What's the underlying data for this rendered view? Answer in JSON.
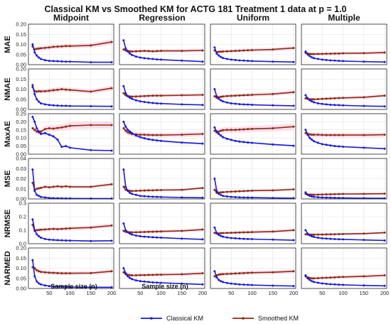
{
  "chart_data": {
    "type": "line",
    "title": "Classical KM vs Smoothed KM for ACTG 181 Treatment 1 data at p = 1.0",
    "columns": [
      "Midpoint",
      "Regression",
      "Uniform",
      "Multiple"
    ],
    "rows": [
      "MAE",
      "NMAE",
      "MaxAE",
      "MSE",
      "NRMSE",
      "NARMED"
    ],
    "xlabel": "Sample size (n)",
    "x": [
      10,
      15,
      20,
      25,
      30,
      40,
      50,
      60,
      70,
      80,
      90,
      100,
      150,
      200
    ],
    "xticks": [
      50,
      100,
      150,
      200
    ],
    "xlim": [
      0,
      205
    ],
    "legend_position": "bottom",
    "grid": true,
    "series_names": [
      "Classical KM",
      "Smoothed KM"
    ],
    "colors": {
      "Classical KM": "#1a1ad6",
      "Smoothed KM": "#8b2a14",
      "band_classical": "#c8d0ff",
      "band_smoothed": "#ffc2dc"
    },
    "panels": [
      {
        "row": "MAE",
        "col": "Midpoint",
        "ylim": [
          0,
          0.2
        ],
        "yticks": [
          "0.00",
          "0.05",
          "0.10",
          "0.15",
          "0.20"
        ],
        "classical": [
          0.1,
          0.06,
          0.045,
          0.035,
          0.028,
          0.022,
          0.019,
          0.018,
          0.017,
          0.016,
          0.015,
          0.015,
          0.012,
          0.012
        ],
        "smoothed": [
          0.09,
          0.075,
          0.078,
          0.08,
          0.081,
          0.083,
          0.085,
          0.088,
          0.089,
          0.09,
          0.092,
          0.092,
          0.095,
          0.112
        ]
      },
      {
        "row": "MAE",
        "col": "Regression",
        "ylim": [
          0,
          0.2
        ],
        "yticks": [
          "0.00",
          "0.05",
          "0.10",
          "0.15",
          "0.20"
        ],
        "classical": [
          0.12,
          0.08,
          0.065,
          0.055,
          0.048,
          0.04,
          0.035,
          0.032,
          0.03,
          0.028,
          0.026,
          0.025,
          0.02,
          0.015
        ],
        "smoothed": [
          0.075,
          0.07,
          0.068,
          0.066,
          0.065,
          0.066,
          0.067,
          0.068,
          0.067,
          0.066,
          0.067,
          0.068,
          0.068,
          0.07
        ]
      },
      {
        "row": "MAE",
        "col": "Uniform",
        "ylim": [
          0,
          0.2
        ],
        "yticks": [
          "0.00",
          "0.05",
          "0.10",
          "0.15",
          "0.20"
        ],
        "classical": [
          0.085,
          0.055,
          0.045,
          0.038,
          0.033,
          0.028,
          0.025,
          0.023,
          0.021,
          0.02,
          0.019,
          0.018,
          0.015,
          0.013
        ],
        "smoothed": [
          0.07,
          0.062,
          0.063,
          0.064,
          0.065,
          0.066,
          0.067,
          0.068,
          0.069,
          0.07,
          0.071,
          0.072,
          0.075,
          0.082
        ]
      },
      {
        "row": "MAE",
        "col": "Multiple",
        "ylim": [
          0,
          0.2
        ],
        "yticks": [
          "0.00",
          "0.05",
          "0.10",
          "0.15",
          "0.20"
        ],
        "classical": [
          0.065,
          0.05,
          0.042,
          0.036,
          0.032,
          0.028,
          0.025,
          0.023,
          0.021,
          0.02,
          0.019,
          0.018,
          0.015,
          0.013
        ],
        "smoothed": [
          0.058,
          0.055,
          0.053,
          0.052,
          0.052,
          0.053,
          0.053,
          0.054,
          0.054,
          0.055,
          0.055,
          0.056,
          0.057,
          0.06
        ]
      },
      {
        "row": "NMAE",
        "col": "Midpoint",
        "ylim": [
          0,
          0.2
        ],
        "yticks": [
          "0.00",
          "0.05",
          "0.10",
          "0.15",
          "0.20"
        ],
        "classical": [
          0.12,
          0.075,
          0.05,
          0.038,
          0.03,
          0.025,
          0.022,
          0.02,
          0.019,
          0.018,
          0.018,
          0.017,
          0.016,
          0.015
        ],
        "smoothed": [
          0.11,
          0.09,
          0.088,
          0.09,
          0.089,
          0.09,
          0.092,
          0.095,
          0.097,
          0.1,
          0.098,
          0.096,
          0.088,
          0.105
        ]
      },
      {
        "row": "NMAE",
        "col": "Regression",
        "ylim": [
          0,
          0.2
        ],
        "yticks": [
          "0.00",
          "0.05",
          "0.10",
          "0.15",
          "0.20"
        ],
        "classical": [
          0.115,
          0.08,
          0.065,
          0.058,
          0.052,
          0.045,
          0.04,
          0.037,
          0.034,
          0.032,
          0.03,
          0.029,
          0.025,
          0.022
        ],
        "smoothed": [
          0.08,
          0.07,
          0.066,
          0.064,
          0.063,
          0.064,
          0.065,
          0.066,
          0.067,
          0.068,
          0.068,
          0.068,
          0.07,
          0.072
        ]
      },
      {
        "row": "NMAE",
        "col": "Uniform",
        "ylim": [
          0,
          0.2
        ],
        "yticks": [
          "0.00",
          "0.05",
          "0.10",
          "0.15",
          "0.20"
        ],
        "classical": [
          0.1,
          0.065,
          0.052,
          0.045,
          0.04,
          0.034,
          0.03,
          0.028,
          0.026,
          0.025,
          0.024,
          0.023,
          0.02,
          0.018
        ],
        "smoothed": [
          0.065,
          0.058,
          0.06,
          0.062,
          0.064,
          0.066,
          0.067,
          0.068,
          0.069,
          0.07,
          0.071,
          0.072,
          0.076,
          0.085
        ]
      },
      {
        "row": "NMAE",
        "col": "Multiple",
        "ylim": [
          0,
          0.2
        ],
        "yticks": [
          "0.00",
          "0.05",
          "0.10",
          "0.15",
          "0.20"
        ],
        "classical": [
          0.07,
          0.055,
          0.045,
          0.04,
          0.035,
          0.03,
          0.027,
          0.025,
          0.023,
          0.022,
          0.021,
          0.02,
          0.017,
          0.015
        ],
        "smoothed": [
          0.055,
          0.052,
          0.05,
          0.05,
          0.05,
          0.051,
          0.052,
          0.053,
          0.054,
          0.055,
          0.056,
          0.057,
          0.06,
          0.068
        ]
      },
      {
        "row": "MaxAE",
        "col": "Midpoint",
        "ylim": [
          0,
          0.25
        ],
        "yticks": [
          "0.00",
          "0.05",
          "0.10",
          "0.15",
          "0.20",
          "0.25"
        ],
        "classical": [
          0.23,
          0.2,
          0.16,
          0.14,
          0.125,
          0.13,
          0.12,
          0.11,
          0.09,
          0.045,
          0.05,
          0.04,
          0.025,
          0.022
        ],
        "smoothed": [
          0.16,
          0.15,
          0.14,
          0.135,
          0.14,
          0.155,
          0.16,
          0.158,
          0.162,
          0.165,
          0.17,
          0.175,
          0.18,
          0.18
        ]
      },
      {
        "row": "MaxAE",
        "col": "Regression",
        "ylim": [
          0,
          0.25
        ],
        "yticks": [
          "0.00",
          "0.05",
          "0.10",
          "0.15",
          "0.20",
          "0.25"
        ],
        "classical": [
          0.2,
          0.17,
          0.15,
          0.14,
          0.13,
          0.115,
          0.105,
          0.098,
          0.092,
          0.088,
          0.085,
          0.082,
          0.072,
          0.065
        ],
        "smoothed": [
          0.16,
          0.145,
          0.135,
          0.13,
          0.125,
          0.122,
          0.12,
          0.12,
          0.119,
          0.118,
          0.118,
          0.118,
          0.12,
          0.125
        ]
      },
      {
        "row": "MaxAE",
        "col": "Uniform",
        "ylim": [
          0,
          0.25
        ],
        "yticks": [
          "0.00",
          "0.05",
          "0.10",
          "0.15",
          "0.20",
          "0.25"
        ],
        "classical": [
          0.165,
          0.14,
          0.125,
          0.115,
          0.105,
          0.095,
          0.088,
          0.082,
          0.078,
          0.075,
          0.072,
          0.07,
          0.06,
          0.052
        ],
        "smoothed": [
          0.145,
          0.135,
          0.14,
          0.145,
          0.148,
          0.15,
          0.15,
          0.15,
          0.152,
          0.153,
          0.155,
          0.156,
          0.16,
          0.17
        ]
      },
      {
        "row": "MaxAE",
        "col": "Multiple",
        "ylim": [
          0,
          0.25
        ],
        "yticks": [
          "0.00",
          "0.05",
          "0.10",
          "0.15",
          "0.20",
          "0.25"
        ],
        "classical": [
          0.15,
          0.12,
          0.1,
          0.09,
          0.08,
          0.07,
          0.062,
          0.058,
          0.054,
          0.05,
          0.048,
          0.046,
          0.04,
          0.034
        ],
        "smoothed": [
          0.13,
          0.125,
          0.122,
          0.12,
          0.12,
          0.12,
          0.119,
          0.118,
          0.118,
          0.118,
          0.118,
          0.118,
          0.118,
          0.12
        ]
      },
      {
        "row": "MSE",
        "col": "Midpoint",
        "ylim": [
          0,
          0.04
        ],
        "yticks": [
          "0.00",
          "0.01",
          "0.02",
          "0.03",
          "0.04"
        ],
        "classical": [
          0.029,
          0.008,
          0.004,
          0.003,
          0.002,
          0.0015,
          0.001,
          0.0008,
          0.0007,
          0.0006,
          0.0005,
          0.0005,
          0.0004,
          0.0004
        ],
        "smoothed": [
          0.016,
          0.009,
          0.01,
          0.0105,
          0.011,
          0.012,
          0.0115,
          0.012,
          0.0125,
          0.012,
          0.0125,
          0.012,
          0.012,
          0.0145
        ]
      },
      {
        "row": "MSE",
        "col": "Regression",
        "ylim": [
          0,
          0.04
        ],
        "yticks": [
          "0.00",
          "0.01",
          "0.02",
          "0.03",
          "0.04"
        ],
        "classical": [
          0.029,
          0.012,
          0.008,
          0.006,
          0.005,
          0.004,
          0.003,
          0.0027,
          0.0024,
          0.0022,
          0.002,
          0.0019,
          0.0015,
          0.0012
        ],
        "smoothed": [
          0.012,
          0.009,
          0.0085,
          0.008,
          0.0078,
          0.008,
          0.0082,
          0.0083,
          0.0085,
          0.0085,
          0.0087,
          0.0088,
          0.009,
          0.0108
        ]
      },
      {
        "row": "MSE",
        "col": "Uniform",
        "ylim": [
          0,
          0.04
        ],
        "yticks": [
          "0.00",
          "0.01",
          "0.02",
          "0.03",
          "0.04"
        ],
        "classical": [
          0.02,
          0.008,
          0.005,
          0.004,
          0.003,
          0.0025,
          0.002,
          0.0018,
          0.0016,
          0.0015,
          0.0014,
          0.0013,
          0.001,
          0.0008
        ],
        "smoothed": [
          0.009,
          0.006,
          0.0062,
          0.0065,
          0.0067,
          0.007,
          0.0072,
          0.0074,
          0.0076,
          0.0078,
          0.008,
          0.0082,
          0.0085,
          0.0095
        ]
      },
      {
        "row": "MSE",
        "col": "Multiple",
        "ylim": [
          0,
          0.04
        ],
        "yticks": [
          "0.00",
          "0.01",
          "0.02",
          "0.03",
          "0.04"
        ],
        "classical": [
          0.0065,
          0.004,
          0.003,
          0.0025,
          0.002,
          0.0017,
          0.0015,
          0.0013,
          0.0012,
          0.0011,
          0.001,
          0.001,
          0.0008,
          0.0006
        ],
        "smoothed": [
          0.005,
          0.0045,
          0.0043,
          0.0042,
          0.0042,
          0.0043,
          0.0044,
          0.0045,
          0.0046,
          0.0047,
          0.0048,
          0.0049,
          0.005,
          0.0052
        ]
      },
      {
        "row": "NRMSE",
        "col": "Midpoint",
        "ylim": [
          0,
          0.3
        ],
        "yticks": [
          "0.0",
          "0.1",
          "0.2",
          "0.3"
        ],
        "classical": [
          0.18,
          0.1,
          0.07,
          0.055,
          0.045,
          0.035,
          0.03,
          0.028,
          0.026,
          0.025,
          0.024,
          0.023,
          0.02,
          0.022
        ],
        "smoothed": [
          0.14,
          0.095,
          0.1,
          0.102,
          0.104,
          0.106,
          0.108,
          0.11,
          0.108,
          0.11,
          0.112,
          0.114,
          0.12,
          0.135
        ]
      },
      {
        "row": "NRMSE",
        "col": "Regression",
        "ylim": [
          0,
          0.3
        ],
        "yticks": [
          "0.0",
          "0.1",
          "0.2",
          "0.3"
        ],
        "classical": [
          0.15,
          0.1,
          0.085,
          0.075,
          0.068,
          0.06,
          0.055,
          0.052,
          0.05,
          0.048,
          0.046,
          0.045,
          0.038,
          0.032
        ],
        "smoothed": [
          0.095,
          0.088,
          0.086,
          0.085,
          0.084,
          0.085,
          0.086,
          0.087,
          0.088,
          0.089,
          0.09,
          0.091,
          0.095,
          0.105
        ]
      },
      {
        "row": "NRMSE",
        "col": "Uniform",
        "ylim": [
          0,
          0.3
        ],
        "yticks": [
          "0.0",
          "0.1",
          "0.2",
          "0.3"
        ],
        "classical": [
          0.12,
          0.08,
          0.065,
          0.058,
          0.052,
          0.046,
          0.042,
          0.04,
          0.038,
          0.036,
          0.035,
          0.034,
          0.03,
          0.026
        ],
        "smoothed": [
          0.08,
          0.075,
          0.076,
          0.078,
          0.079,
          0.08,
          0.081,
          0.082,
          0.083,
          0.084,
          0.085,
          0.086,
          0.09,
          0.1
        ]
      },
      {
        "row": "NRMSE",
        "col": "Multiple",
        "ylim": [
          0,
          0.3
        ],
        "yticks": [
          "0.0",
          "0.1",
          "0.2",
          "0.3"
        ],
        "classical": [
          0.1,
          0.075,
          0.062,
          0.055,
          0.05,
          0.044,
          0.04,
          0.038,
          0.036,
          0.034,
          0.033,
          0.032,
          0.028,
          0.024
        ],
        "smoothed": [
          0.07,
          0.068,
          0.067,
          0.067,
          0.067,
          0.068,
          0.068,
          0.069,
          0.07,
          0.07,
          0.071,
          0.072,
          0.075,
          0.082
        ]
      },
      {
        "row": "NARMED",
        "col": "Midpoint",
        "ylim": [
          0,
          0.2
        ],
        "yticks": [
          "0.00",
          "0.05",
          "0.10",
          "0.15",
          "0.20"
        ],
        "classical": [
          0.14,
          0.06,
          0.035,
          0.025,
          0.02,
          0.015,
          0.012,
          0.01,
          0.009,
          0.008,
          0.008,
          0.007,
          0.006,
          0.006
        ],
        "smoothed": [
          0.105,
          0.1,
          0.09,
          0.085,
          0.082,
          0.08,
          0.078,
          0.077,
          0.076,
          0.075,
          0.075,
          0.075,
          0.076,
          0.085
        ]
      },
      {
        "row": "NARMED",
        "col": "Regression",
        "ylim": [
          0,
          0.2
        ],
        "yticks": [
          "0.00",
          "0.05",
          "0.10",
          "0.15",
          "0.20"
        ],
        "classical": [
          0.1,
          0.075,
          0.06,
          0.052,
          0.046,
          0.04,
          0.036,
          0.034,
          0.032,
          0.03,
          0.029,
          0.028,
          0.024,
          0.02
        ],
        "smoothed": [
          0.08,
          0.07,
          0.068,
          0.066,
          0.065,
          0.065,
          0.066,
          0.066,
          0.067,
          0.067,
          0.068,
          0.068,
          0.07,
          0.075
        ]
      },
      {
        "row": "NARMED",
        "col": "Uniform",
        "ylim": [
          0,
          0.2
        ],
        "yticks": [
          "0.00",
          "0.05",
          "0.10",
          "0.15",
          "0.20"
        ],
        "classical": [
          0.085,
          0.055,
          0.042,
          0.036,
          0.032,
          0.027,
          0.024,
          0.022,
          0.02,
          0.019,
          0.018,
          0.017,
          0.014,
          0.012
        ],
        "smoothed": [
          0.06,
          0.065,
          0.068,
          0.07,
          0.071,
          0.072,
          0.073,
          0.074,
          0.075,
          0.076,
          0.077,
          0.078,
          0.08,
          0.085
        ]
      },
      {
        "row": "NARMED",
        "col": "Multiple",
        "ylim": [
          0,
          0.2
        ],
        "yticks": [
          "0.00",
          "0.05",
          "0.10",
          "0.15",
          "0.20"
        ],
        "classical": [
          0.065,
          0.05,
          0.042,
          0.036,
          0.032,
          0.028,
          0.025,
          0.023,
          0.021,
          0.02,
          0.019,
          0.018,
          0.015,
          0.013
        ],
        "smoothed": [
          0.06,
          0.055,
          0.052,
          0.05,
          0.05,
          0.051,
          0.052,
          0.053,
          0.054,
          0.055,
          0.056,
          0.057,
          0.06,
          0.065
        ]
      }
    ]
  }
}
